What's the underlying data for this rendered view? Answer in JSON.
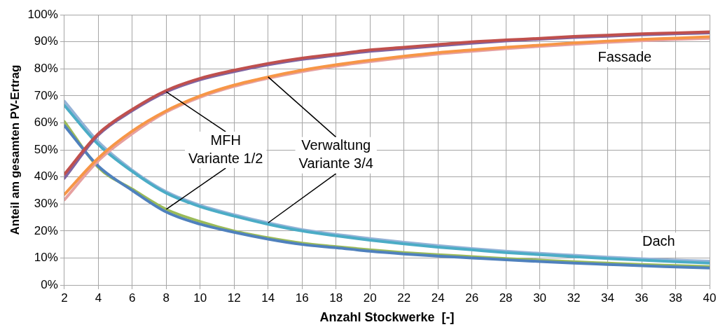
{
  "chart_data": {
    "type": "line",
    "xlabel": "Anzahl Stockwerke  [-]",
    "ylabel": "Anteil am gesamten PV-Ertrag",
    "x": [
      2,
      4,
      6,
      8,
      10,
      12,
      14,
      16,
      18,
      20,
      22,
      24,
      26,
      28,
      30,
      32,
      34,
      36,
      38,
      40
    ],
    "xlim": [
      2,
      40
    ],
    "xticks": [
      2,
      4,
      6,
      8,
      10,
      12,
      14,
      16,
      18,
      20,
      22,
      24,
      26,
      28,
      30,
      32,
      34,
      36,
      38,
      40
    ],
    "ylim": [
      0,
      100
    ],
    "yticks": [
      {
        "value": 0,
        "label": "0%"
      },
      {
        "value": 10,
        "label": "10%"
      },
      {
        "value": 20,
        "label": "20%"
      },
      {
        "value": 30,
        "label": "30%"
      },
      {
        "value": 40,
        "label": "40%"
      },
      {
        "value": 50,
        "label": "50%"
      },
      {
        "value": 60,
        "label": "60%"
      },
      {
        "value": 70,
        "label": "70%"
      },
      {
        "value": 80,
        "label": "80%"
      },
      {
        "value": 90,
        "label": "90%"
      },
      {
        "value": 100,
        "label": "100%"
      }
    ],
    "grid": true,
    "legend": false,
    "marker": "none",
    "line_style": "solid",
    "series": [
      {
        "color": "#c0504d",
        "values": [
          41,
          56,
          65,
          72,
          76.5,
          79.5,
          82,
          84,
          85.5,
          87,
          88,
          89,
          90,
          90.7,
          91.3,
          92,
          92.5,
          93,
          93.3,
          93.7
        ]
      },
      {
        "color": "#8064a2",
        "values": [
          39.5,
          55.5,
          64.5,
          71.5,
          76,
          79,
          81.5,
          83.5,
          85,
          86.5,
          87.5,
          88.5,
          89.5,
          90.3,
          91,
          91.6,
          92.1,
          92.6,
          93,
          93.3
        ]
      },
      {
        "color": "#f79646",
        "values": [
          33.5,
          47,
          57,
          64.5,
          70,
          74,
          77,
          79.5,
          81.5,
          83.2,
          84.7,
          86,
          87,
          88,
          88.8,
          89.6,
          90.3,
          90.9,
          91.4,
          91.9
        ]
      },
      {
        "color": "#e6a0a0",
        "values": [
          31.5,
          46,
          56,
          64,
          69.5,
          73.5,
          76.5,
          79,
          81,
          82.7,
          84.2,
          85.5,
          86.5,
          87.5,
          88.3,
          89.1,
          89.8,
          90.4,
          90.9,
          91.3
        ]
      },
      {
        "color": "#4f81bd",
        "values": [
          59,
          44,
          35,
          27,
          22.5,
          19.5,
          17,
          15,
          13.8,
          12.5,
          11.5,
          10.7,
          10,
          9.3,
          8.7,
          8.1,
          7.6,
          7.1,
          6.7,
          6.3
        ]
      },
      {
        "color": "#9bbb59",
        "values": [
          60.5,
          43.5,
          35.5,
          28,
          23.5,
          20,
          17.5,
          15.5,
          14.2,
          13,
          12,
          11.2,
          10.5,
          9.8,
          9.2,
          8.6,
          8.1,
          7.6,
          7.2,
          6.8
        ]
      },
      {
        "color": "#4bacc6",
        "values": [
          66.5,
          52,
          42,
          34,
          29,
          25.5,
          22.5,
          20,
          18.2,
          16.6,
          15.2,
          14,
          13,
          12,
          11.2,
          10.5,
          9.8,
          9.2,
          8.6,
          8.1
        ]
      },
      {
        "color": "#95b3d7",
        "values": [
          68,
          53,
          42.5,
          34.5,
          29.5,
          26,
          23,
          20.5,
          18.7,
          17.2,
          15.8,
          14.6,
          13.5,
          12.5,
          11.7,
          11,
          10.3,
          9.7,
          9.2,
          8.8
        ]
      }
    ],
    "annotations": [
      {
        "text": "MFH\nVariante 1/2",
        "x": 8,
        "y": 71.5
      },
      {
        "text": "Verwaltung\nVariante 3/4",
        "x": 14,
        "y": 77
      },
      "Fassade",
      "Dach"
    ]
  }
}
